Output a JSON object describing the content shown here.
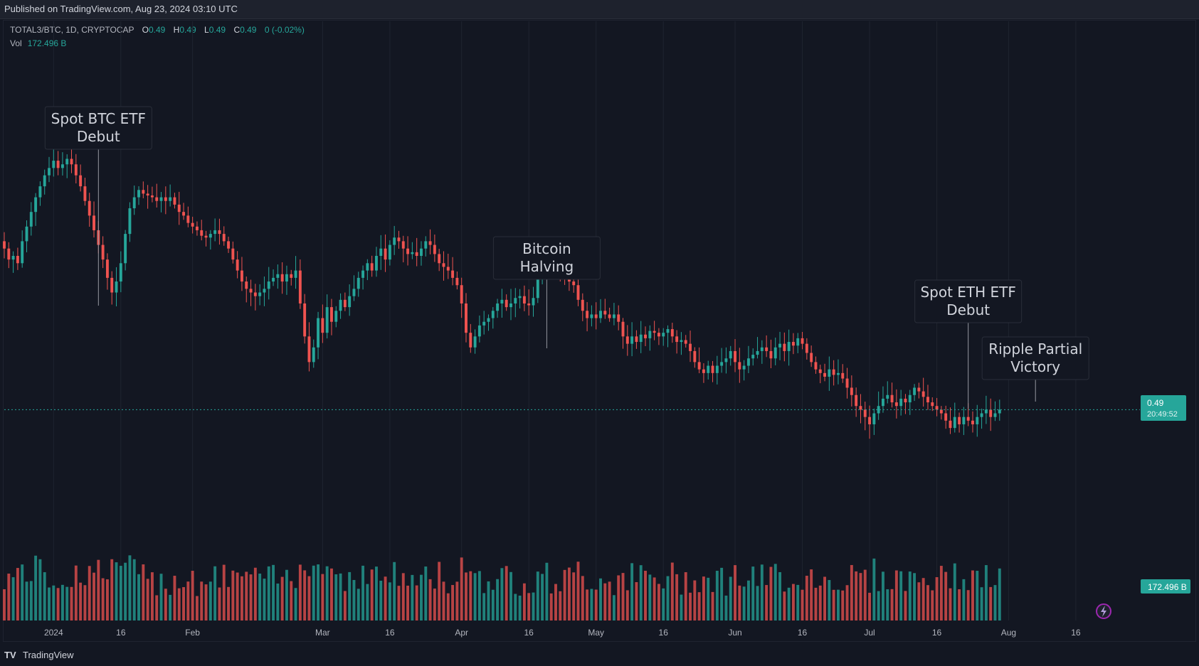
{
  "header": {
    "published": "Published on TradingView.com, Aug 23, 2024 03:10 UTC"
  },
  "legend": {
    "symbol": "TOTAL3/BTC, 1D, CRYPTOCAP",
    "o_label": "O",
    "o_value": "0.49",
    "h_label": "H",
    "h_value": "0.49",
    "l_label": "L",
    "l_value": "0.49",
    "c_label": "C",
    "c_value": "0.49",
    "change": "0 (-0.02%)",
    "vol_label": "Vol",
    "vol_value": "172.496 B"
  },
  "price_tag": {
    "price": "0.49",
    "countdown": "20:49:52"
  },
  "volume_tag": "172.496 B",
  "footer": {
    "brand": "TradingView",
    "logo": "TV"
  },
  "colors": {
    "up": "#26a69a",
    "down": "#ef5350",
    "background": "#131722",
    "grid": "#1f2430"
  },
  "chart_data": {
    "type": "candlestick",
    "title": "",
    "x_tick_labels": [
      "2024",
      "16",
      "Feb",
      "Mar",
      "16",
      "Apr",
      "16",
      "May",
      "16",
      "Jun",
      "16",
      "Jul",
      "16",
      "Aug",
      "16"
    ],
    "x_tick_dates": [
      "2024-01-01",
      "2024-01-16",
      "2024-02-01",
      "2024-03-01",
      "2024-03-16",
      "2024-04-01",
      "2024-04-16",
      "2024-05-01",
      "2024-05-16",
      "2024-06-01",
      "2024-06-16",
      "2024-07-01",
      "2024-07-16",
      "2024-08-01",
      "2024-08-16"
    ],
    "x_range": [
      "2023-12-21",
      "2024-08-23"
    ],
    "y_range": [
      0.442,
      0.64
    ],
    "last_price": 0.49,
    "annotations": [
      {
        "lines": [
          "Spot BTC ETF",
          "Debut"
        ],
        "date": "2024-01-11"
      },
      {
        "lines": [
          "Bitcoin",
          "Halving"
        ],
        "date": "2024-04-20"
      },
      {
        "lines": [
          "Spot ETH ETF",
          "Debut"
        ],
        "date": "2024-07-23"
      },
      {
        "lines": [
          "Ripple Partial",
          "Victory"
        ],
        "date": "2024-08-07"
      }
    ],
    "series": [
      {
        "name": "TOTAL3/BTC",
        "note": "daily closes, estimated",
        "dates_from": "2023-12-21",
        "close": [
          0.578,
          0.572,
          0.574,
          0.57,
          0.582,
          0.59,
          0.598,
          0.606,
          0.612,
          0.618,
          0.622,
          0.626,
          0.622,
          0.624,
          0.627,
          0.624,
          0.618,
          0.612,
          0.604,
          0.596,
          0.588,
          0.58,
          0.572,
          0.562,
          0.554,
          0.56,
          0.57,
          0.586,
          0.6,
          0.606,
          0.61,
          0.608,
          0.607,
          0.606,
          0.604,
          0.606,
          0.604,
          0.606,
          0.602,
          0.598,
          0.596,
          0.592,
          0.59,
          0.588,
          0.585,
          0.584,
          0.586,
          0.588,
          0.586,
          0.582,
          0.578,
          0.572,
          0.566,
          0.56,
          0.556,
          0.554,
          0.552,
          0.554,
          0.556,
          0.56,
          0.562,
          0.564,
          0.56,
          0.564,
          0.562,
          0.566,
          0.548,
          0.53,
          0.516,
          0.524,
          0.54,
          0.532,
          0.546,
          0.538,
          0.544,
          0.55,
          0.546,
          0.552,
          0.556,
          0.562,
          0.566,
          0.57,
          0.566,
          0.574,
          0.578,
          0.572,
          0.58,
          0.584,
          0.582,
          0.578,
          0.575,
          0.576,
          0.574,
          0.578,
          0.582,
          0.58,
          0.575,
          0.57,
          0.568,
          0.566,
          0.562,
          0.558,
          0.548,
          0.532,
          0.524,
          0.53,
          0.536,
          0.538,
          0.54,
          0.544,
          0.548,
          0.55,
          0.546,
          0.548,
          0.551,
          0.552,
          0.548,
          0.547,
          0.551,
          0.562,
          0.568,
          0.572,
          0.57,
          0.567,
          0.564,
          0.562,
          0.56,
          0.558,
          0.55,
          0.544,
          0.54,
          0.542,
          0.54,
          0.544,
          0.542,
          0.54,
          0.542,
          0.538,
          0.53,
          0.526,
          0.53,
          0.527,
          0.531,
          0.529,
          0.533,
          0.532,
          0.53,
          0.532,
          0.534,
          0.53,
          0.527,
          0.528,
          0.526,
          0.522,
          0.516,
          0.512,
          0.51,
          0.514,
          0.51,
          0.514,
          0.516,
          0.518,
          0.522,
          0.516,
          0.512,
          0.514,
          0.518,
          0.52,
          0.522,
          0.524,
          0.522,
          0.518,
          0.524,
          0.526,
          0.522,
          0.527,
          0.525,
          0.529,
          0.526,
          0.521,
          0.516,
          0.512,
          0.51,
          0.508,
          0.512,
          0.509,
          0.51,
          0.507,
          0.502,
          0.498,
          0.492,
          0.49,
          0.486,
          0.482,
          0.488,
          0.492,
          0.496,
          0.498,
          0.494,
          0.492,
          0.496,
          0.494,
          0.498,
          0.502,
          0.5,
          0.497,
          0.494,
          0.492,
          0.49,
          0.488,
          0.484,
          0.48,
          0.486,
          0.482,
          0.486,
          0.484,
          0.482,
          0.486,
          0.488,
          0.49,
          0.486,
          0.488,
          0.49
        ]
      }
    ],
    "volume_note": "relative daily volume bars, estimated"
  }
}
